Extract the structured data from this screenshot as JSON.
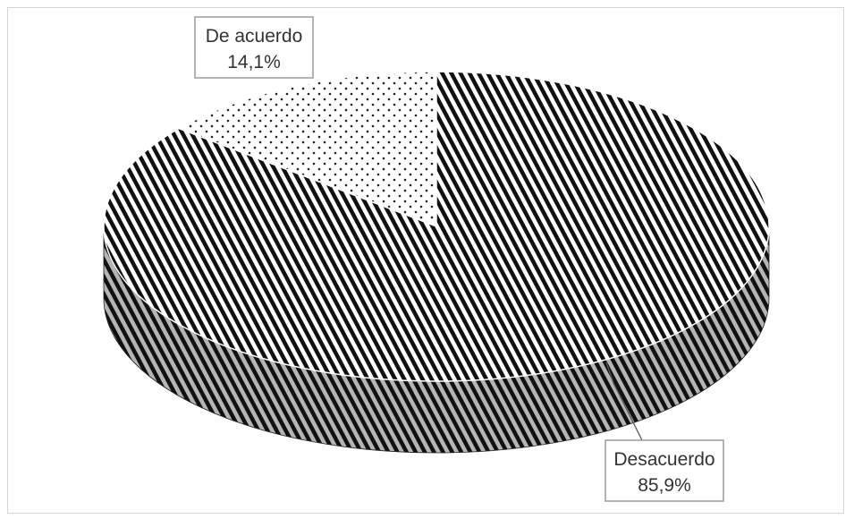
{
  "chart_data": {
    "type": "pie",
    "style": "3d",
    "title": "",
    "slices": [
      {
        "label": "De acuerdo",
        "value": 14.1,
        "value_label": "14,1%",
        "pattern": "dotted"
      },
      {
        "label": "Desacuerdo",
        "value": 85.9,
        "value_label": "85,9%",
        "pattern": "diagonal-stripes"
      }
    ],
    "legend": "none"
  }
}
